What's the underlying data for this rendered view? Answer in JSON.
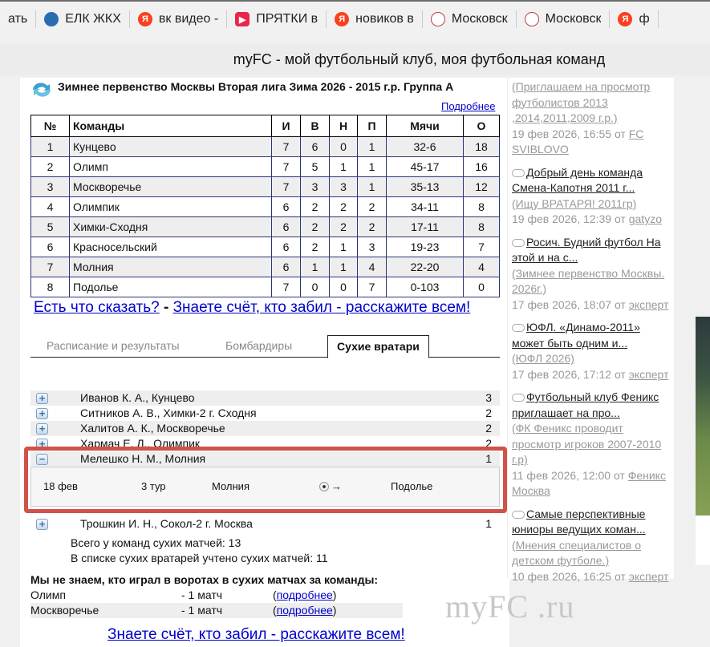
{
  "browser": {
    "bookmarks": [
      {
        "label": "ать",
        "icon": "none",
        "color": "#f1f1f1"
      },
      {
        "label": "ЕЛК ЖКХ",
        "icon": "mos-icon",
        "color": "#2b6cb0"
      },
      {
        "label": "вк видео -",
        "icon": "yandex-icon",
        "color": "#fc3f1d"
      },
      {
        "label": "ПРЯТКИ в",
        "icon": "play-icon",
        "color": "#e8264b"
      },
      {
        "label": "новиков в",
        "icon": "yandex-icon",
        "color": "#fc3f1d"
      },
      {
        "label": "Московск",
        "icon": "crest-icon",
        "color": "#c04040"
      },
      {
        "label": "Московск",
        "icon": "crest-icon",
        "color": "#c04040"
      },
      {
        "label": "ф",
        "icon": "yandex-icon",
        "color": "#fc3f1d"
      }
    ],
    "title": "myFC - мой футбольный клуб, моя футбольная команд"
  },
  "league": {
    "title": "Зимнее первенство Москвы Вторая лига Зима 2026 - 2015 г.р. Группа А",
    "more": "Подробнее"
  },
  "standings": {
    "headers": [
      "№",
      "Команды",
      "И",
      "В",
      "Н",
      "П",
      "Мячи",
      "О"
    ],
    "rows": [
      [
        "1",
        "Кунцево",
        "7",
        "6",
        "0",
        "1",
        "32-6",
        "18"
      ],
      [
        "2",
        "Олимп",
        "7",
        "5",
        "1",
        "1",
        "45-17",
        "16"
      ],
      [
        "3",
        "Москворечье",
        "7",
        "3",
        "3",
        "1",
        "35-13",
        "12"
      ],
      [
        "4",
        "Олимпик",
        "6",
        "2",
        "2",
        "2",
        "34-11",
        "8"
      ],
      [
        "5",
        "Химки-Сходня",
        "6",
        "2",
        "2",
        "2",
        "17-11",
        "8"
      ],
      [
        "6",
        "Красносельский",
        "6",
        "2",
        "1",
        "3",
        "19-23",
        "7"
      ],
      [
        "7",
        "Молния",
        "6",
        "1",
        "1",
        "4",
        "22-20",
        "4"
      ],
      [
        "8",
        "Подолье",
        "7",
        "0",
        "0",
        "7",
        "0-103",
        "0"
      ]
    ]
  },
  "links": {
    "say": "Есть что сказать?",
    "sep": " - ",
    "score": "Знаете счёт, кто забил - расскажите всем!"
  },
  "tabs": [
    {
      "label": "Расписание и результаты",
      "active": false
    },
    {
      "label": "Бомбардиры",
      "active": false
    },
    {
      "label": "Сухие вратари",
      "active": true
    }
  ],
  "goalkeepers": [
    {
      "name": "Иванов К. А., Кунцево",
      "count": "3",
      "expanded": false
    },
    {
      "name": "Ситников А. В., Химки-2 г. Сходня",
      "count": "2",
      "expanded": false
    },
    {
      "name": "Халитов А. К., Москворечье",
      "count": "2",
      "expanded": false
    },
    {
      "name": "Хармач Е. Л., Олимпик",
      "count": "2",
      "expanded": false
    },
    {
      "name": "Мелешко Н. М., Молния",
      "count": "1",
      "expanded": true
    },
    {
      "name": "Трошкин И. Н., Сокол-2 г. Москва",
      "count": "1",
      "expanded": false
    }
  ],
  "match_detail": {
    "date": "18 фев",
    "round": "3 тур",
    "home": "Молния",
    "arrow": "→",
    "away": "Подолье",
    "icon": "soccer-ball-icon"
  },
  "totals": {
    "team_clean": "Всего у команд сухих матчей: 13",
    "counted": "В списке сухих вратарей учтено сухих матчей: 11"
  },
  "unknown": {
    "title": "Мы не знаем, кто играл в воротах в сухих матчах за команды:",
    "rows": [
      {
        "team": "Олимп",
        "matches": "- 1 матч",
        "open": "(",
        "link": "подробнее",
        "close": ")"
      },
      {
        "team": "Москворечье",
        "matches": "- 1 матч",
        "open": "(",
        "link": "подробнее",
        "close": ")"
      }
    ]
  },
  "bottom_link": "Знаете счёт, кто забил - расскажите всем!",
  "watermark": "myFC .ru",
  "sidebar": {
    "news": [
      {
        "headline": "",
        "source": "(Приглашаем на просмотр футболистов 2013 ,2014,2011,2009 г.р.)",
        "date": "19 фев 2026, 16:55 от ",
        "author": "FC SVIBLOVO"
      },
      {
        "headline": "Добрый день команда Смена-Капотня 2011 г...",
        "source": "(Ищу ВРАТАРЯ! 2011гр)",
        "date": "19 фев 2026, 12:39 от ",
        "author": "gatyzo"
      },
      {
        "headline": "Росич. Будний футбол На этой и на с...",
        "source": "(Зимнее первенство Москвы. 2026г.)",
        "date": "17 фев 2026, 18:07 от ",
        "author": "эксперт"
      },
      {
        "headline": "ЮФЛ. «Динамо-2011» может быть одним и...",
        "source": "(ЮФЛ 2026)",
        "date": "17 фев 2026, 17:12 от ",
        "author": "эксперт"
      },
      {
        "headline": "Футбольный клуб Феникс приглашает на про...",
        "source": "(ФК Феникс проводит просмотр игроков 2007-2010 г.р)",
        "date": "11 фев 2026, 12:00 от ",
        "author": "Феникс Москва"
      },
      {
        "headline": "Самые перспективные юниоры ведущих коман...",
        "source": "(Мнения специалистов о детском футболе.)",
        "date": "10 фев 2026, 16:25 от ",
        "author": "эксперт"
      }
    ]
  },
  "highlight_color": "#d0524a"
}
